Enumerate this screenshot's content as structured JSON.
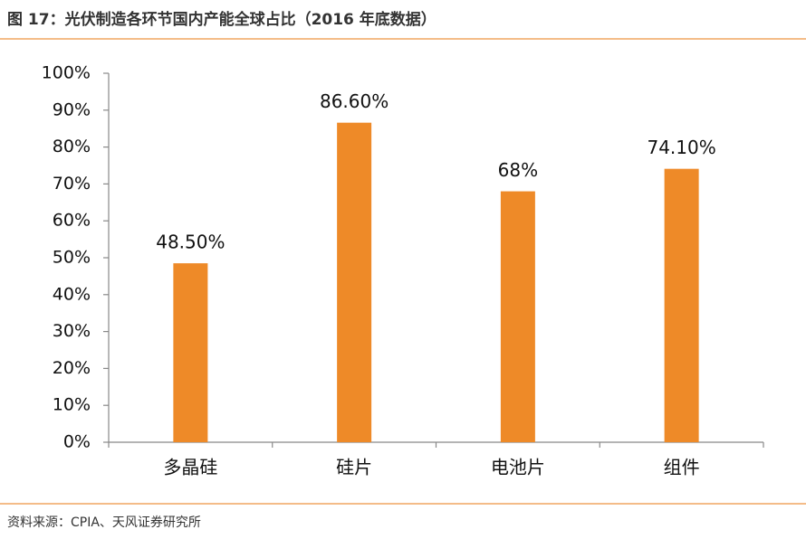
{
  "chart_data": {
    "type": "bar",
    "title": "图 17：光伏制造各环节国内产能全球占比（2016 年底数据）",
    "source": "资料来源：CPIA、天风证券研究所",
    "categories": [
      "多晶硅",
      "硅片",
      "电池片",
      "组件"
    ],
    "values": [
      48.5,
      86.6,
      68,
      74.1
    ],
    "value_labels": [
      "48.50%",
      "86.60%",
      "68%",
      "74.10%"
    ],
    "color": "#ee8a28",
    "ylim": [
      0,
      100
    ],
    "yticks": [
      {
        "value": 0,
        "label": "0%"
      },
      {
        "value": 10,
        "label": "10%"
      },
      {
        "value": 20,
        "label": "20%"
      },
      {
        "value": 30,
        "label": "30%"
      },
      {
        "value": 40,
        "label": "40%"
      },
      {
        "value": 50,
        "label": "50%"
      },
      {
        "value": 60,
        "label": "60%"
      },
      {
        "value": 70,
        "label": "70%"
      },
      {
        "value": 80,
        "label": "80%"
      },
      {
        "value": 90,
        "label": "90%"
      },
      {
        "value": 100,
        "label": "100%"
      }
    ],
    "grid": false
  }
}
